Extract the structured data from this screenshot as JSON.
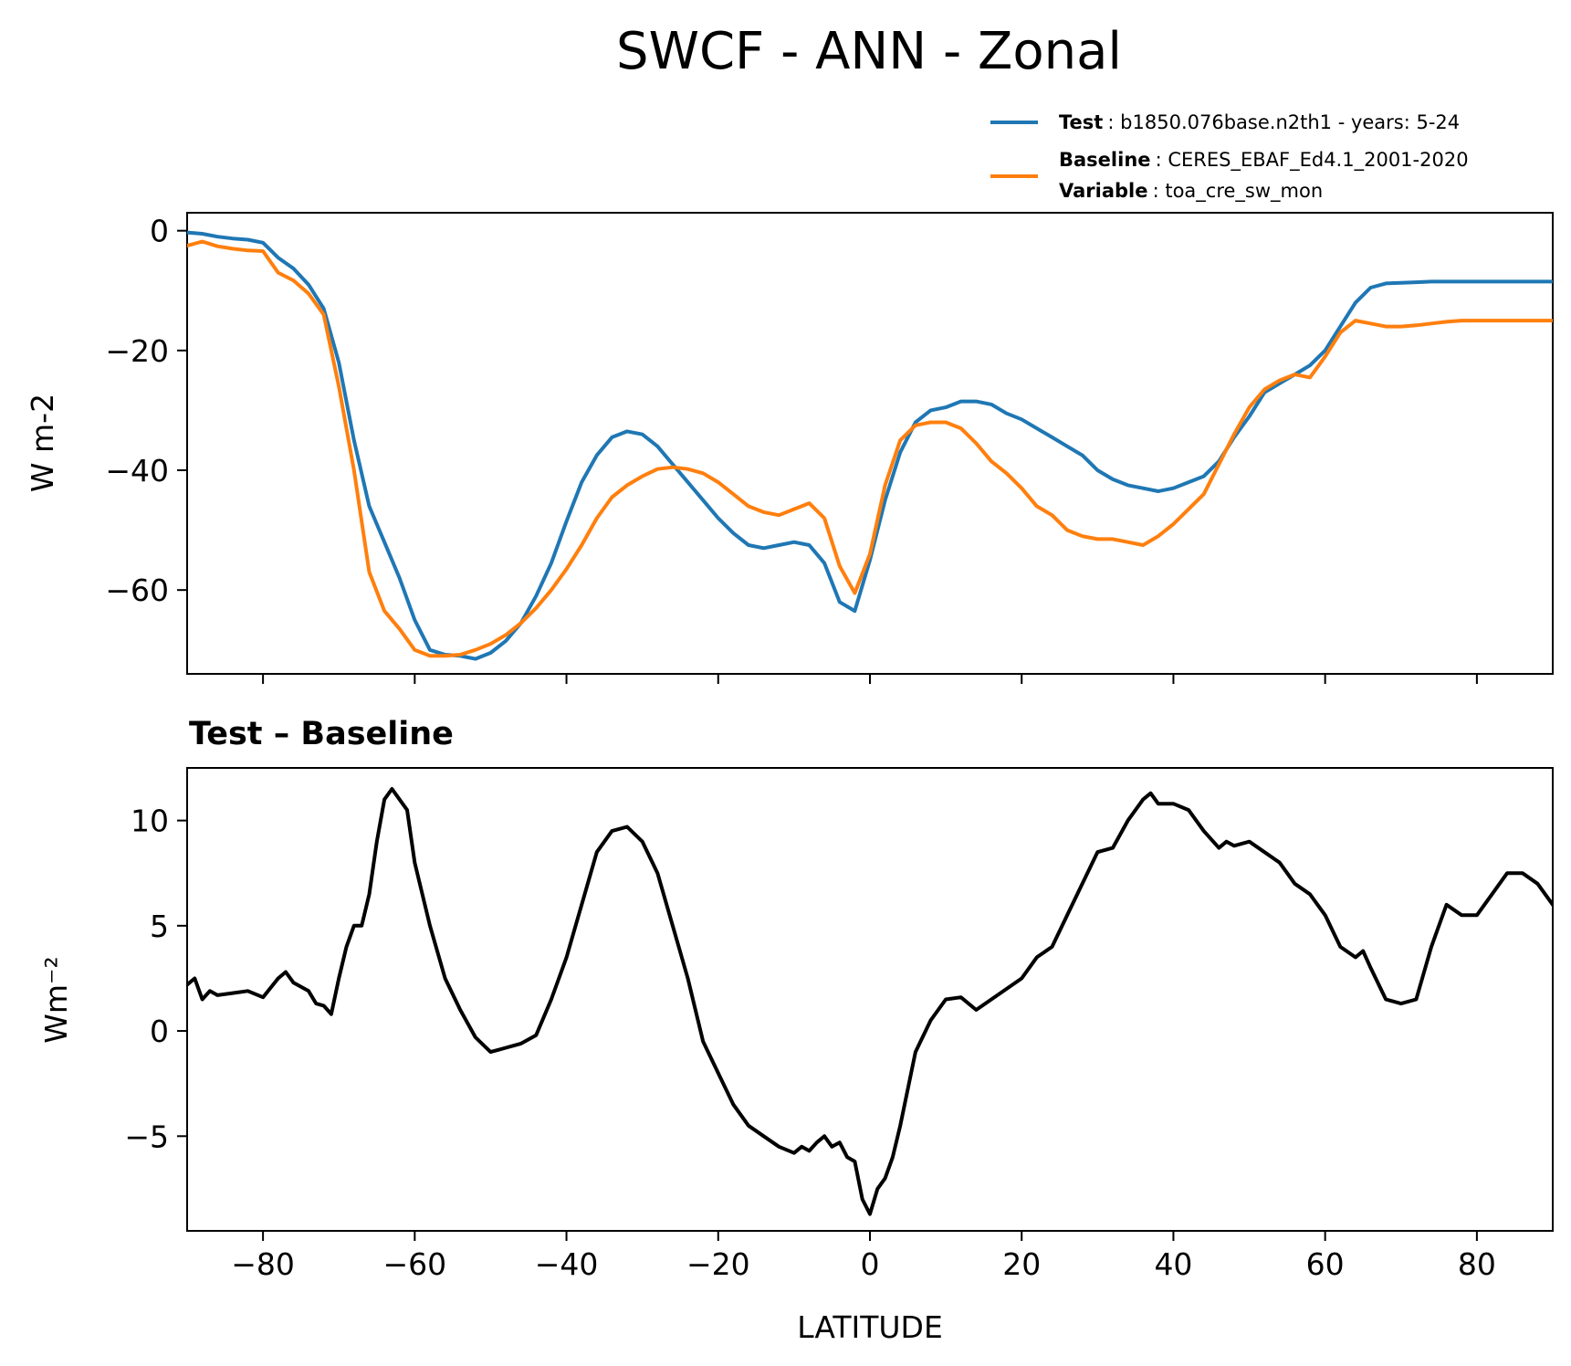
{
  "title": "SWCF - ANN - Zonal",
  "legend": {
    "test_key": "Test",
    "test_value": ": b1850.076base.n2th1 - years: 5-24",
    "baseline_key": "Baseline",
    "baseline_value": ": CERES_EBAF_Ed4.1_2001-2020",
    "variable_key": "Variable",
    "variable_value": ": toa_cre_sw_mon"
  },
  "colors": {
    "test": "#1f77b4",
    "baseline": "#ff7f0e",
    "diff": "#000000"
  },
  "chart_data": [
    {
      "type": "line",
      "ylabel": "W m-2",
      "xlim": [
        -90,
        90
      ],
      "ylim": [
        -74,
        3
      ],
      "yticks": [
        0,
        -20,
        -40,
        -60
      ],
      "xticks": [
        -80,
        -60,
        -40,
        -20,
        0,
        20,
        40,
        60,
        80
      ],
      "x": [
        -90,
        -88,
        -86,
        -84,
        -82,
        -80,
        -78,
        -76,
        -74,
        -72,
        -70,
        -68,
        -66,
        -64,
        -62,
        -60,
        -58,
        -56,
        -54,
        -52,
        -50,
        -48,
        -46,
        -44,
        -42,
        -40,
        -38,
        -36,
        -34,
        -32,
        -30,
        -28,
        -26,
        -24,
        -22,
        -20,
        -18,
        -16,
        -14,
        -12,
        -10,
        -8,
        -6,
        -4,
        -2,
        0,
        2,
        4,
        6,
        8,
        10,
        12,
        14,
        16,
        18,
        20,
        22,
        24,
        26,
        28,
        30,
        32,
        34,
        36,
        38,
        40,
        42,
        44,
        46,
        48,
        50,
        52,
        54,
        56,
        58,
        60,
        62,
        64,
        66,
        68,
        70,
        72,
        74,
        76,
        78,
        80,
        82,
        84,
        86,
        88,
        90
      ],
      "series": [
        {
          "name": "Test",
          "values": [
            -0.3,
            -0.5,
            -1.0,
            -1.3,
            -1.5,
            -2.0,
            -4.5,
            -6.3,
            -9.0,
            -13.0,
            -22.0,
            -35.0,
            -46.0,
            -52.0,
            -58.0,
            -65.0,
            -70.0,
            -70.8,
            -71.0,
            -71.5,
            -70.5,
            -68.5,
            -65.5,
            -61.0,
            -55.5,
            -48.5,
            -42.0,
            -37.5,
            -34.5,
            -33.5,
            -34.0,
            -36.0,
            -39.0,
            -42.0,
            -45.0,
            -48.0,
            -50.5,
            -52.5,
            -53.0,
            -52.5,
            -52.0,
            -52.5,
            -55.5,
            -62.0,
            -63.5,
            -55.0,
            -45.0,
            -37.0,
            -32.0,
            -30.0,
            -29.5,
            -28.5,
            -28.5,
            -29.0,
            -30.5,
            -31.5,
            -33.0,
            -34.5,
            -36.0,
            -37.5,
            -40.0,
            -41.5,
            -42.5,
            -43.0,
            -43.5,
            -43.0,
            -42.0,
            -41.0,
            -38.5,
            -34.5,
            -31.0,
            -27.0,
            -25.5,
            -24.0,
            -22.5,
            -20.0,
            -16.0,
            -12.0,
            -9.5,
            -8.8,
            -8.7,
            -8.6,
            -8.5,
            -8.5,
            -8.5,
            -8.5,
            -8.5,
            -8.5,
            -8.5,
            -8.5,
            -8.5
          ],
          "color": "#1f77b4"
        },
        {
          "name": "Baseline",
          "values": [
            -2.5,
            -1.8,
            -2.6,
            -3.0,
            -3.3,
            -3.4,
            -7.0,
            -8.3,
            -10.5,
            -14.0,
            -26.0,
            -40.0,
            -57.0,
            -63.5,
            -66.5,
            -70.0,
            -71.0,
            -71.0,
            -70.8,
            -70.0,
            -69.0,
            -67.5,
            -65.5,
            -63.0,
            -60.0,
            -56.5,
            -52.5,
            -48.0,
            -44.5,
            -42.5,
            -41.0,
            -39.8,
            -39.5,
            -39.8,
            -40.5,
            -42.0,
            -44.0,
            -46.0,
            -47.0,
            -47.5,
            -46.5,
            -45.5,
            -48.0,
            -56.0,
            -60.5,
            -54.0,
            -42.5,
            -35.0,
            -32.5,
            -32.0,
            -32.0,
            -33.0,
            -35.5,
            -38.5,
            -40.5,
            -43.0,
            -46.0,
            -47.5,
            -50.0,
            -51.0,
            -51.5,
            -51.5,
            -52.0,
            -52.5,
            -51.0,
            -49.0,
            -46.5,
            -44.0,
            -39.0,
            -34.0,
            -29.5,
            -26.5,
            -25.0,
            -24.0,
            -24.5,
            -21.0,
            -17.0,
            -15.0,
            -15.5,
            -16.0,
            -16.0,
            -15.8,
            -15.5,
            -15.2,
            -15.0,
            -15.0,
            -15.0,
            -15.0,
            -15.0,
            -15.0,
            -15.0
          ],
          "color": "#ff7f0e"
        }
      ]
    },
    {
      "type": "line",
      "title": "Test – Baseline",
      "xlabel": "LATITUDE",
      "ylabel": "Wm⁻²",
      "xlim": [
        -90,
        90
      ],
      "ylim": [
        -9.5,
        12.5
      ],
      "yticks": [
        10,
        5,
        0,
        -5
      ],
      "xticks": [
        -80,
        -60,
        -40,
        -20,
        0,
        20,
        40,
        60,
        80
      ],
      "x": [
        -90,
        -89,
        -88,
        -87,
        -86,
        -84,
        -82,
        -80,
        -78,
        -77,
        -76,
        -74,
        -73,
        -72,
        -71,
        -70,
        -69,
        -68,
        -67,
        -66,
        -65,
        -64,
        -63,
        -62,
        -61,
        -60,
        -58,
        -56,
        -54,
        -52,
        -50,
        -49,
        -48,
        -46,
        -44,
        -42,
        -40,
        -38,
        -36,
        -34,
        -32,
        -30,
        -28,
        -26,
        -24,
        -22,
        -20,
        -18,
        -16,
        -14,
        -12,
        -10,
        -9,
        -8,
        -7,
        -6,
        -5,
        -4,
        -3,
        -2,
        -1,
        0,
        1,
        2,
        3,
        4,
        6,
        8,
        10,
        12,
        14,
        16,
        18,
        20,
        22,
        24,
        26,
        28,
        30,
        32,
        34,
        36,
        37,
        38,
        40,
        42,
        44,
        46,
        47,
        48,
        50,
        52,
        54,
        56,
        58,
        60,
        62,
        64,
        65,
        66,
        68,
        70,
        72,
        74,
        76,
        78,
        80,
        82,
        84,
        86,
        88,
        90
      ],
      "series": [
        {
          "name": "diff",
          "values": [
            2.2,
            2.5,
            1.5,
            1.9,
            1.7,
            1.8,
            1.9,
            1.6,
            2.5,
            2.8,
            2.3,
            1.9,
            1.3,
            1.2,
            0.8,
            2.5,
            4.0,
            5.0,
            5.0,
            6.5,
            9.0,
            11.0,
            11.5,
            11.0,
            10.5,
            8.0,
            5.0,
            2.5,
            1.0,
            -0.3,
            -1.0,
            -0.9,
            -0.8,
            -0.6,
            -0.2,
            1.5,
            3.5,
            6.0,
            8.5,
            9.5,
            9.7,
            9.0,
            7.5,
            5.0,
            2.5,
            -0.5,
            -2.0,
            -3.5,
            -4.5,
            -5.0,
            -5.5,
            -5.8,
            -5.5,
            -5.7,
            -5.3,
            -5.0,
            -5.5,
            -5.3,
            -6.0,
            -6.2,
            -8.0,
            -8.7,
            -7.5,
            -7.0,
            -6.0,
            -4.5,
            -1.0,
            0.5,
            1.5,
            1.6,
            1.0,
            1.5,
            2.0,
            2.5,
            3.5,
            4.0,
            5.5,
            7.0,
            8.5,
            8.7,
            10.0,
            11.0,
            11.3,
            10.8,
            10.8,
            10.5,
            9.5,
            8.7,
            9.0,
            8.8,
            9.0,
            8.5,
            8.0,
            7.0,
            6.5,
            5.5,
            4.0,
            3.5,
            3.8,
            3.0,
            1.5,
            1.3,
            1.5,
            4.0,
            6.0,
            5.5,
            5.5,
            6.5,
            7.5,
            7.5,
            7.0,
            6.0
          ],
          "color": "#000000"
        }
      ]
    }
  ]
}
